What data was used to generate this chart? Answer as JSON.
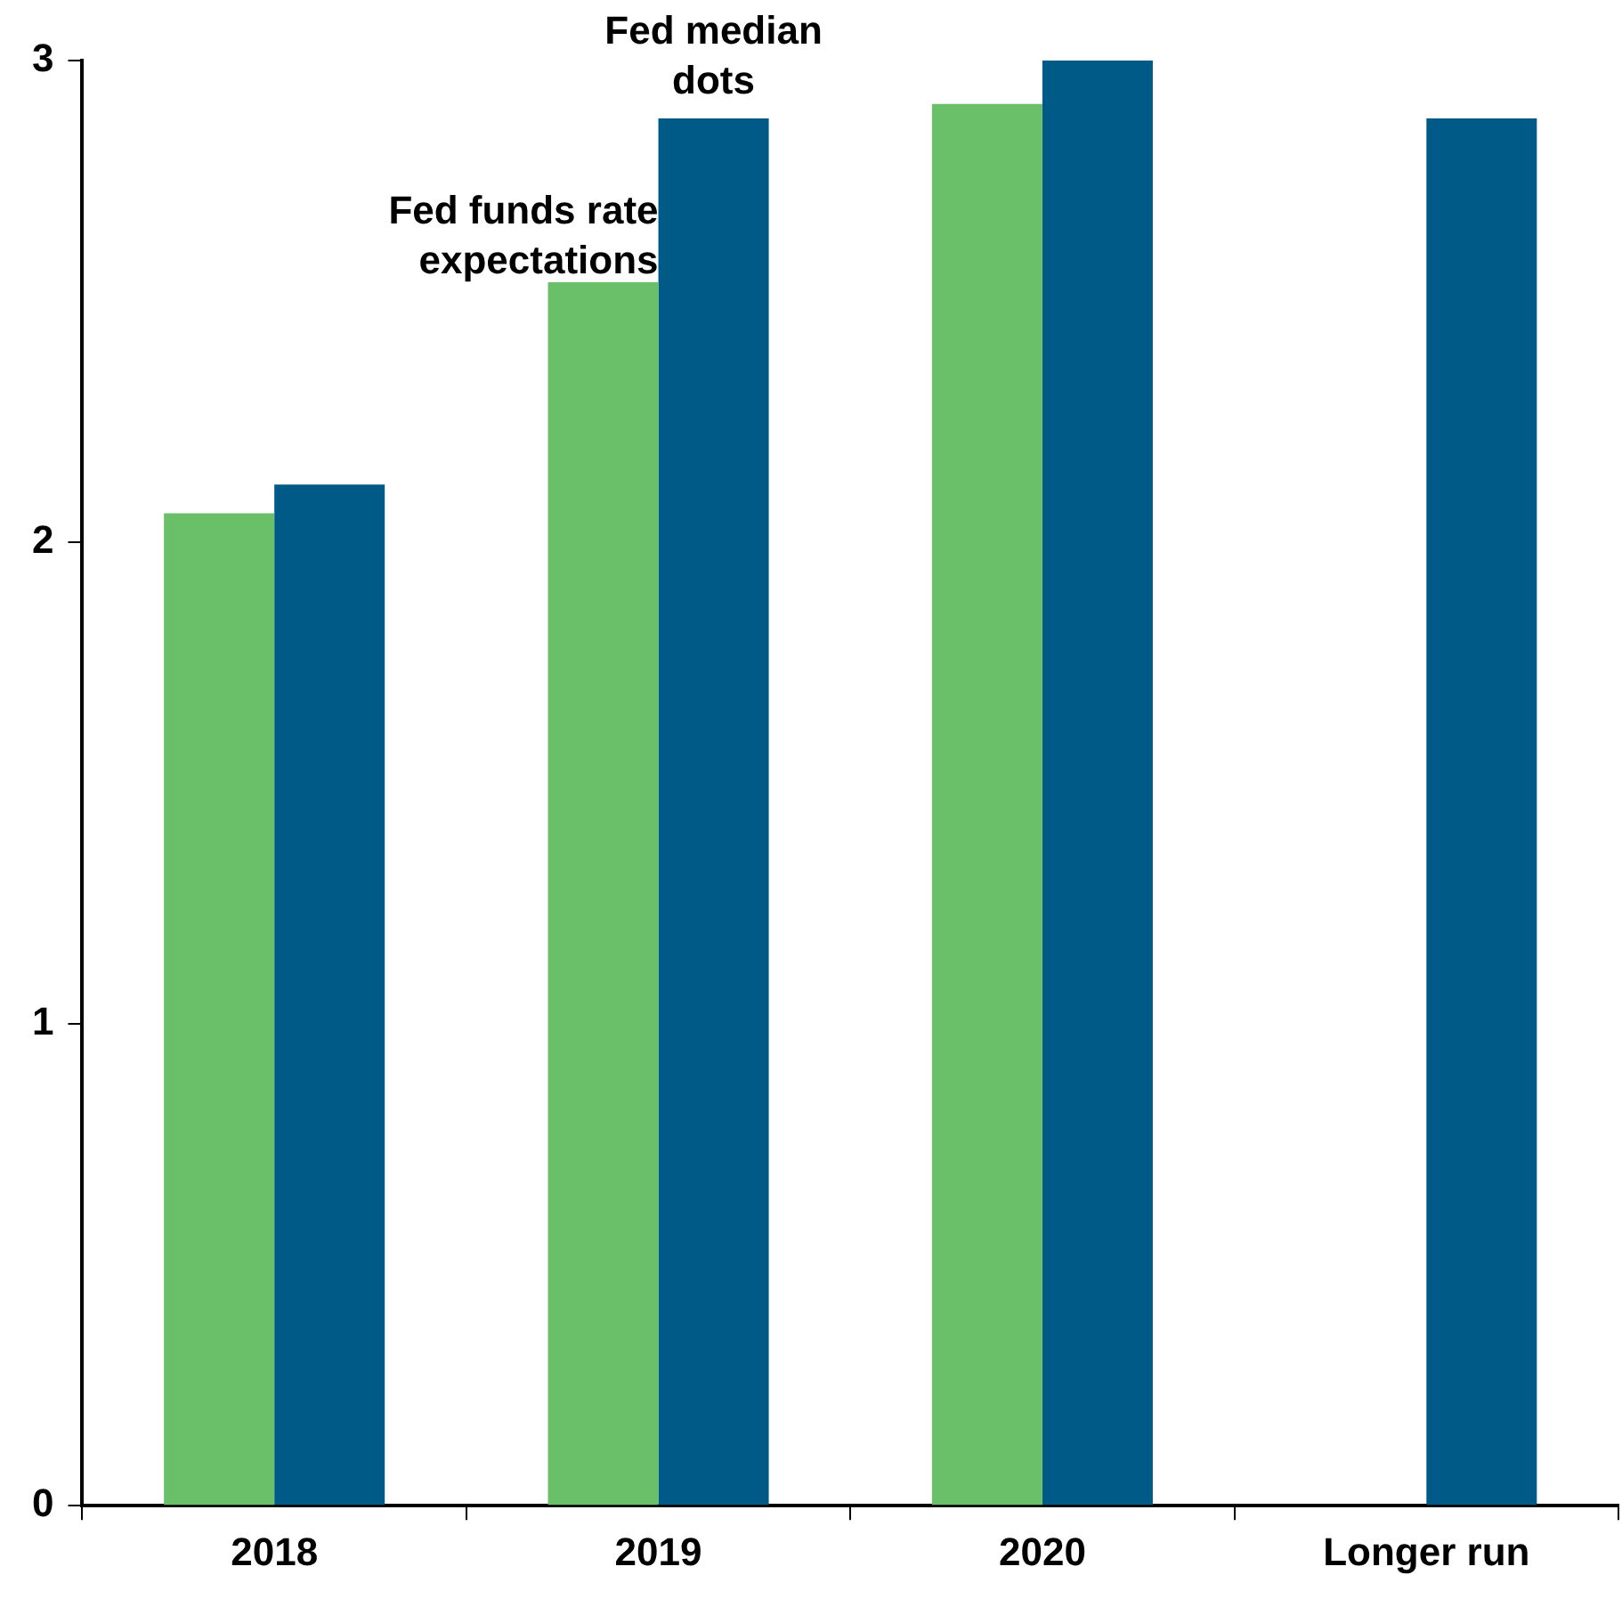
{
  "chart_data": {
    "type": "bar",
    "categories": [
      "2018",
      "2019",
      "2020",
      "Longer run"
    ],
    "series": [
      {
        "name": "Fed funds rate expectations",
        "color": "#6abf69",
        "values": [
          2.06,
          2.54,
          2.91,
          null
        ]
      },
      {
        "name": "Fed median dots",
        "color": "#005a87",
        "values": [
          2.12,
          2.88,
          3.0,
          2.88
        ]
      }
    ],
    "ylim": [
      0,
      3
    ],
    "yticks": [
      0,
      1,
      2,
      3
    ],
    "grid": false,
    "legend": false
  }
}
